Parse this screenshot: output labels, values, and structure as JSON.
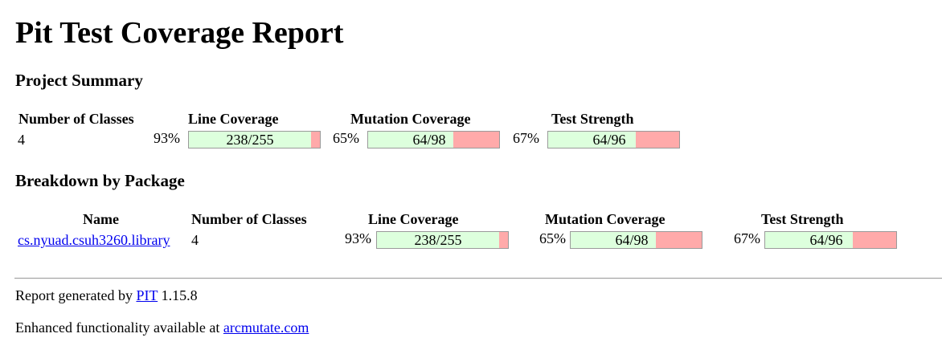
{
  "title": "Pit Test Coverage Report",
  "project_summary": {
    "heading": "Project Summary",
    "headers": {
      "classes": "Number of Classes",
      "line": "Line Coverage",
      "mutation": "Mutation Coverage",
      "strength": "Test Strength"
    },
    "classes": "4",
    "line": {
      "pct": "93%",
      "label": "238/255",
      "fraction": 0.933
    },
    "mutation": {
      "pct": "65%",
      "label": "64/98",
      "fraction": 0.653
    },
    "strength": {
      "pct": "67%",
      "label": "64/96",
      "fraction": 0.667
    }
  },
  "breakdown": {
    "heading": "Breakdown by Package",
    "headers": {
      "name": "Name",
      "classes": "Number of Classes",
      "line": "Line Coverage",
      "mutation": "Mutation Coverage",
      "strength": "Test Strength"
    },
    "rows": [
      {
        "name": "cs.nyuad.csuh3260.library",
        "classes": "4",
        "line": {
          "pct": "93%",
          "label": "238/255",
          "fraction": 0.933
        },
        "mutation": {
          "pct": "65%",
          "label": "64/98",
          "fraction": 0.653
        },
        "strength": {
          "pct": "67%",
          "label": "64/96",
          "fraction": 0.667
        }
      }
    ]
  },
  "footer": {
    "generated_prefix": "Report generated by",
    "pit_link": "PIT",
    "version": "1.15.8",
    "enhanced_prefix": "Enhanced functionality available at",
    "arcmutate_link": "arcmutate.com"
  },
  "colors": {
    "covered": "#ddffdd",
    "uncovered": "#ffaaaa",
    "link": "#0000ee"
  }
}
